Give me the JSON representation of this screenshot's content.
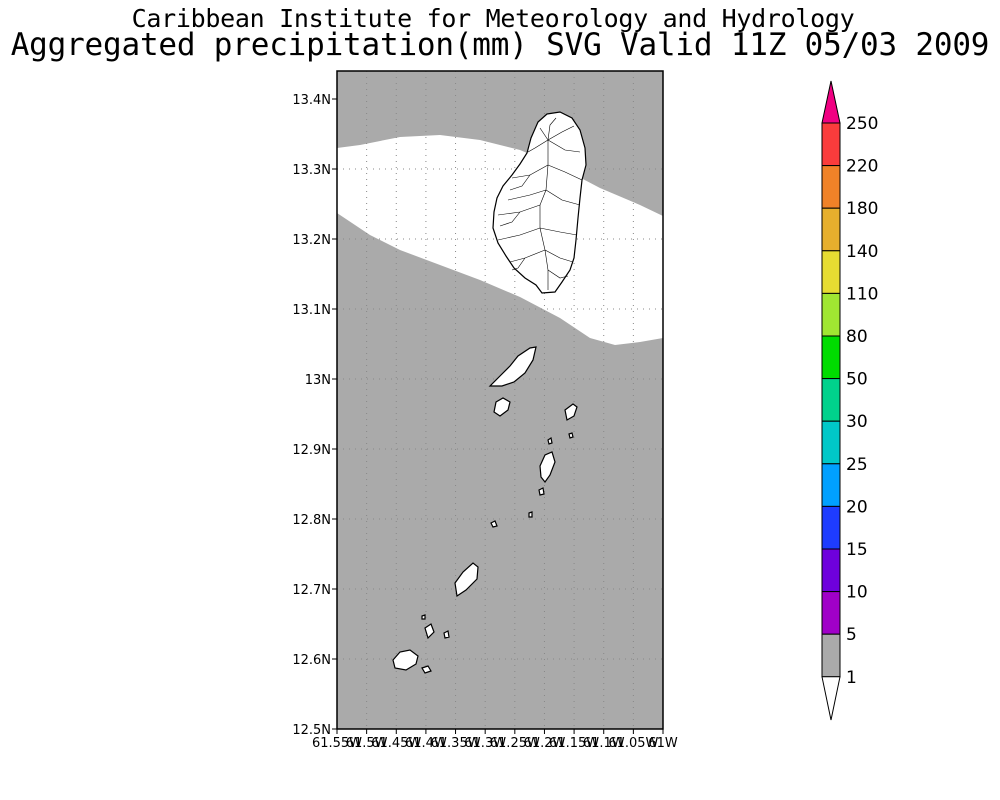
{
  "title_line1": "Caribbean Institute for Meteorology and Hydrology",
  "title_line2": "Aggregated precipitation(mm) SVG Valid 11Z 05/03 2009",
  "map": {
    "lat_range": [
      12.5,
      13.45
    ],
    "lon_range": [
      -61.55,
      -61.0
    ],
    "lat_ticks": [
      "13.4N",
      "13.3N",
      "13.2N",
      "13.1N",
      "13N",
      "12.9N",
      "12.8N",
      "12.7N",
      "12.6N",
      "12.5N"
    ],
    "lon_ticks": [
      "61.55W",
      "61.5W",
      "61.45W",
      "61.4W",
      "61.35W",
      "61.3W",
      "61.25W",
      "61.2W",
      "61.15W",
      "61.1W",
      "61.05W",
      "61W"
    ],
    "region": "St. Vincent and the Grenadines",
    "precip_classes": [
      {
        "range": "0-1 mm",
        "area": "band across northern St. Vincent"
      },
      {
        "range": "1-5 mm",
        "area": "remaining domain"
      }
    ]
  },
  "legend": {
    "labels": [
      "1",
      "5",
      "10",
      "15",
      "20",
      "25",
      "30",
      "50",
      "80",
      "110",
      "140",
      "180",
      "220",
      "250"
    ],
    "colors": [
      "#ffffff",
      "#aaaaaa",
      "#a000c8",
      "#6e00dc",
      "#1e3cff",
      "#00a0ff",
      "#00c8c8",
      "#00d28c",
      "#00dc00",
      "#a0e632",
      "#e6dc32",
      "#e6af2d",
      "#f08228",
      "#fa3c3c",
      "#f00082"
    ]
  }
}
